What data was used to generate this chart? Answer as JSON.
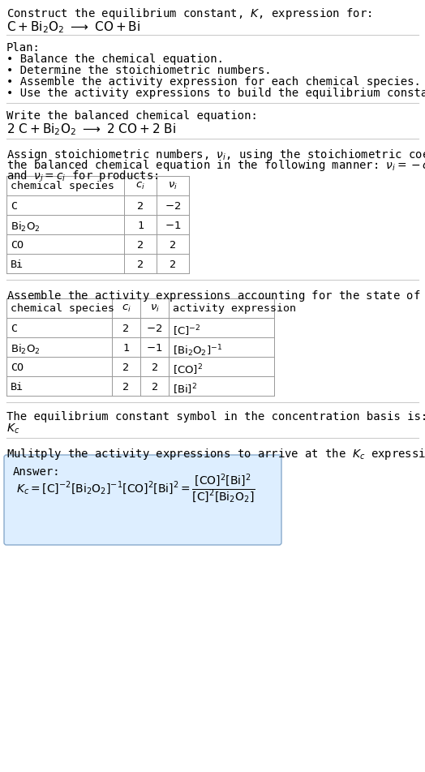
{
  "bg_color": "#ffffff",
  "title_line1": "Construct the equilibrium constant, $K$, expression for:",
  "title_line2_plain": "C + Bi",
  "plan_header": "Plan:",
  "plan_bullets": [
    "Balance the chemical equation.",
    "Determine the stoichiometric numbers.",
    "Assemble the activity expression for each chemical species.",
    "Use the activity expressions to build the equilibrium constant expression."
  ],
  "balanced_header": "Write the balanced chemical equation:",
  "stoich_intro1": "Assign stoichiometric numbers, $\\nu_i$, using the stoichiometric coefficients, $c_i$, from",
  "stoich_intro2": "the balanced chemical equation in the following manner: $\\nu_i = -c_i$ for reactants",
  "stoich_intro3": "and $\\nu_i = c_i$ for products:",
  "table1_col0": "chemical species",
  "table1_col1": "$c_i$",
  "table1_col2": "$\\nu_i$",
  "table1_rows": [
    [
      "C",
      "2",
      "$-2$"
    ],
    [
      "$\\mathrm{Bi_2O_2}$",
      "1",
      "$-1$"
    ],
    [
      "CO",
      "2",
      "2"
    ],
    [
      "Bi",
      "2",
      "2"
    ]
  ],
  "activity_header": "Assemble the activity expressions accounting for the state of matter and $\\nu_i$:",
  "table2_col0": "chemical species",
  "table2_col1": "$c_i$",
  "table2_col2": "$\\nu_i$",
  "table2_col3": "activity expression",
  "table2_rows": [
    [
      "C",
      "2",
      "$-2$",
      "$[\\mathrm{C}]^{-2}$"
    ],
    [
      "$\\mathrm{Bi_2O_2}$",
      "1",
      "$-1$",
      "$[\\mathrm{Bi_2O_2}]^{-1}$"
    ],
    [
      "CO",
      "2",
      "2",
      "$[\\mathrm{CO}]^{2}$"
    ],
    [
      "Bi",
      "2",
      "2",
      "$[\\mathrm{Bi}]^{2}$"
    ]
  ],
  "kc_text": "The equilibrium constant symbol in the concentration basis is:",
  "kc_symbol": "$K_c$",
  "multiply_text": "Mulitply the activity expressions to arrive at the $K_c$ expression:",
  "answer_label": "Answer:",
  "answer_box_color": "#ddeeff",
  "answer_box_border": "#88aacc",
  "hline_color": "#cccccc",
  "table_line_color": "#999999",
  "font_family": "monospace",
  "font_size": 10,
  "dpi": 100,
  "fig_w": 5.24,
  "fig_h": 9.53
}
